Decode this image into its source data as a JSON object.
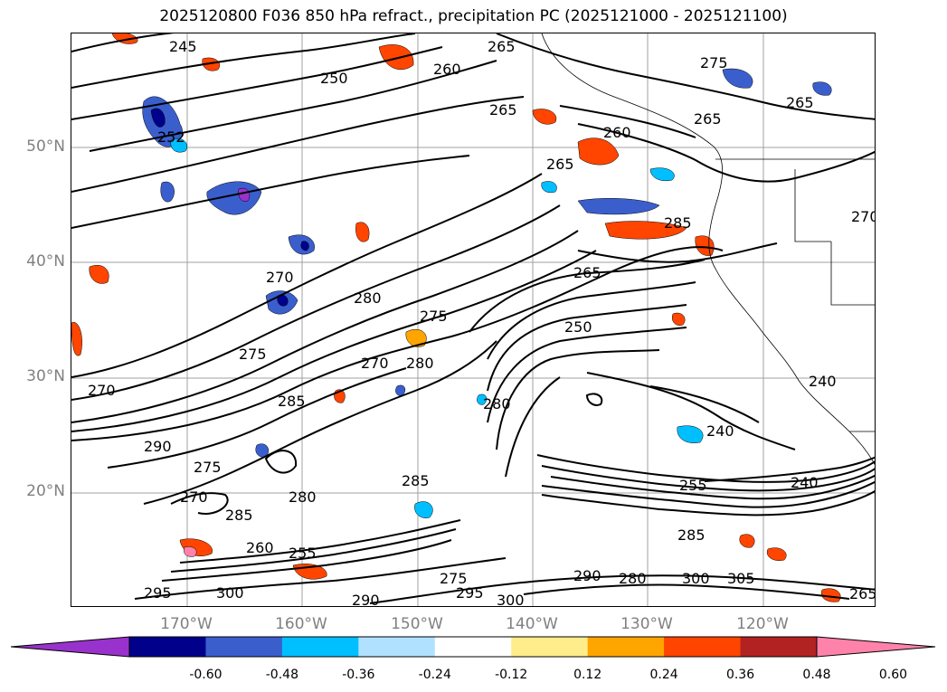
{
  "title": "2025120800 F036 850 hPa refract., precipitation PC (2025121000 - 2025121100)",
  "lat_labels": [
    "50°N",
    "40°N",
    "30°N",
    "20°N"
  ],
  "lon_labels": [
    "170°W",
    "160°W",
    "150°W",
    "140°W",
    "130°W",
    "120°W"
  ],
  "colorbar": {
    "tick_labels": [
      "-0.60",
      "-0.48",
      "-0.36",
      "-0.24",
      "-0.12",
      "0.12",
      "0.24",
      "0.36",
      "0.48",
      "0.60"
    ],
    "colors": [
      "#9932cc",
      "#00008b",
      "#3a5fcd",
      "#00bfff",
      "#b0e2ff",
      "#ffffff",
      "#ffec8b",
      "#ffa500",
      "#ff4500",
      "#b22222",
      "#ff82ab"
    ]
  },
  "contour_labels": [
    "245",
    "250",
    "252",
    "260",
    "265",
    "265",
    "275",
    "265",
    "265",
    "260",
    "265",
    "270",
    "285",
    "265",
    "270",
    "280",
    "275",
    "250",
    "275",
    "270",
    "280",
    "285",
    "280",
    "240",
    "240",
    "290",
    "275",
    "270",
    "285",
    "285",
    "280",
    "255",
    "240",
    "285",
    "260",
    "255",
    "295",
    "300",
    "290",
    "275",
    "295",
    "300",
    "290",
    "280",
    "300",
    "305",
    "265",
    "270"
  ]
}
